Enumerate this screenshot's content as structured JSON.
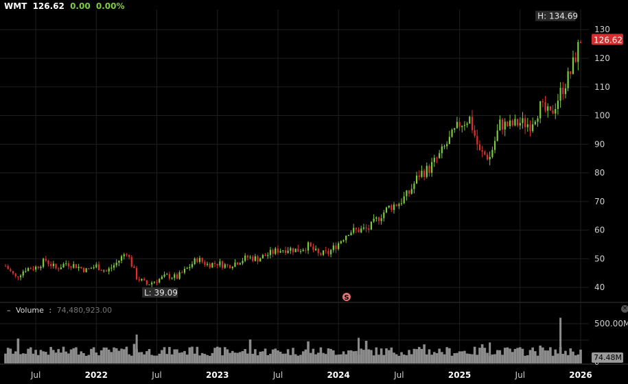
{
  "ticker": {
    "symbol": "WMT",
    "price": "126.62",
    "change": "0.00",
    "change_pct": "0.00%"
  },
  "volume_panel": {
    "label": "Volume",
    "value": "74,480,923.00",
    "last_label": "74.48M",
    "axis_label": "500.00M",
    "axis_zero": "0"
  },
  "markers": {
    "high_label": "H: 134.69",
    "low_label": "L: 39.09",
    "last_price_label": "126.62",
    "split_label": "S"
  },
  "colors": {
    "background": "#000000",
    "up": "#7ccd3f",
    "down": "#e0302b",
    "grid": "#1f1f1f",
    "volume": "#8c8c8c",
    "last_price_badge": "#d32f2f"
  },
  "chart_data": {
    "type": "candlestick",
    "title": "WMT",
    "x_range": [
      "2021-04",
      "2026-01"
    ],
    "ylim": [
      35,
      137
    ],
    "y_ticks": [
      40,
      50,
      60,
      70,
      80,
      90,
      100,
      110,
      120,
      130
    ],
    "x_ticks": [
      "Jul",
      "2022",
      "Jul",
      "2023",
      "Jul",
      "2024",
      "Jul",
      "2025",
      "Jul",
      "2026"
    ],
    "x_tick_dates": [
      "2021-07",
      "2022-01",
      "2022-07",
      "2023-01",
      "2023-07",
      "2024-01",
      "2024-07",
      "2025-01",
      "2025-07",
      "2026-01"
    ],
    "high": 134.69,
    "low": 39.09,
    "last": 126.62,
    "split_date": "2024-02",
    "grid": true,
    "close_path": [
      [
        "2021-04",
        47.5
      ],
      [
        "2021-05",
        43.5
      ],
      [
        "2021-06",
        46.5
      ],
      [
        "2021-07",
        47.0
      ],
      [
        "2021-08",
        49.5
      ],
      [
        "2021-09",
        46.5
      ],
      [
        "2021-10",
        48.5
      ],
      [
        "2021-11",
        47.5
      ],
      [
        "2021-12",
        46.0
      ],
      [
        "2022-01",
        47.5
      ],
      [
        "2022-02",
        45.5
      ],
      [
        "2022-03",
        48.5
      ],
      [
        "2022-04",
        52.5
      ],
      [
        "2022-05",
        43.5
      ],
      [
        "2022-06",
        41.0
      ],
      [
        "2022-07",
        42.5
      ],
      [
        "2022-08",
        44.0
      ],
      [
        "2022-09",
        43.5
      ],
      [
        "2022-10",
        46.5
      ],
      [
        "2022-11",
        50.0
      ],
      [
        "2022-12",
        48.0
      ],
      [
        "2023-01",
        48.5
      ],
      [
        "2023-02",
        47.5
      ],
      [
        "2023-03",
        49.0
      ],
      [
        "2023-04",
        50.5
      ],
      [
        "2023-05",
        50.0
      ],
      [
        "2023-06",
        51.5
      ],
      [
        "2023-07",
        53.0
      ],
      [
        "2023-08",
        53.5
      ],
      [
        "2023-09",
        53.0
      ],
      [
        "2023-10",
        54.5
      ],
      [
        "2023-11",
        51.5
      ],
      [
        "2023-12",
        52.0
      ],
      [
        "2024-01",
        55.5
      ],
      [
        "2024-02",
        59.5
      ],
      [
        "2024-03",
        60.0
      ],
      [
        "2024-04",
        60.5
      ],
      [
        "2024-05",
        64.5
      ],
      [
        "2024-06",
        68.0
      ],
      [
        "2024-07",
        69.5
      ],
      [
        "2024-08",
        73.0
      ],
      [
        "2024-09",
        79.5
      ],
      [
        "2024-10",
        81.5
      ],
      [
        "2024-11",
        86.0
      ],
      [
        "2024-12",
        91.5
      ],
      [
        "2025-01",
        97.0
      ],
      [
        "2025-02",
        99.0
      ],
      [
        "2025-03",
        87.0
      ],
      [
        "2025-04",
        85.5
      ],
      [
        "2025-05",
        97.0
      ],
      [
        "2025-06",
        96.5
      ],
      [
        "2025-07",
        97.5
      ],
      [
        "2025-08",
        97.0
      ],
      [
        "2025-09",
        103.0
      ],
      [
        "2025-10",
        100.0
      ],
      [
        "2025-11",
        108.0
      ],
      [
        "2025-12",
        115.0
      ],
      [
        "2026-01",
        126.62
      ]
    ],
    "volume_max": 520000000,
    "volume_ticks": [
      0,
      500000000
    ]
  }
}
